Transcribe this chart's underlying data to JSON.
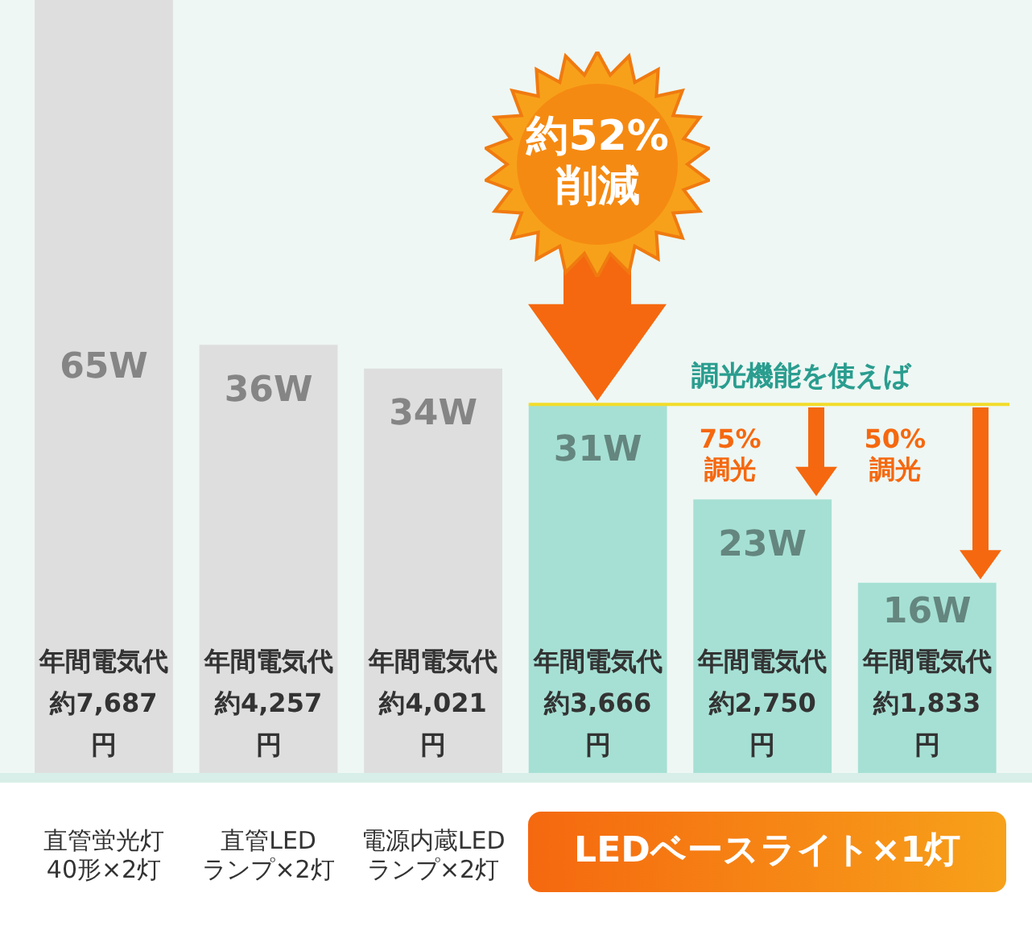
{
  "chart_data": {
    "type": "bar",
    "categories": [
      "直管蛍光灯40形×2灯",
      "直管LEDランプ×2灯",
      "電源内蔵LEDランプ×2灯",
      null,
      null,
      null
    ],
    "values": [
      65,
      36,
      34,
      31,
      23,
      16
    ],
    "colors": [
      "#dedede",
      "#dedede",
      "#dedede",
      "#a6e0d4",
      "#a6e0d4",
      "#a6e0d4"
    ],
    "value_labels": [
      "65W",
      "36W",
      "34W",
      "31W",
      "23W",
      "16W"
    ],
    "ylim": [
      0,
      65
    ],
    "tick_labels": "x",
    "grid": false,
    "legend": false,
    "ref_lines": [
      {
        "axis": "y",
        "value": 31,
        "label": "調光機能を使えば",
        "color": "#f2dc2a"
      }
    ],
    "annotations": [
      "年間電気代約7,687円",
      "年間電気代約4,257円",
      "年間電気代約4,021円",
      "年間電気代約3,666円",
      "年間電気代約2,750円",
      "年間電気代約1,833円",
      "約52%削減",
      "75%調光",
      "50%調光",
      "LEDベースライト×1灯"
    ]
  }
}
